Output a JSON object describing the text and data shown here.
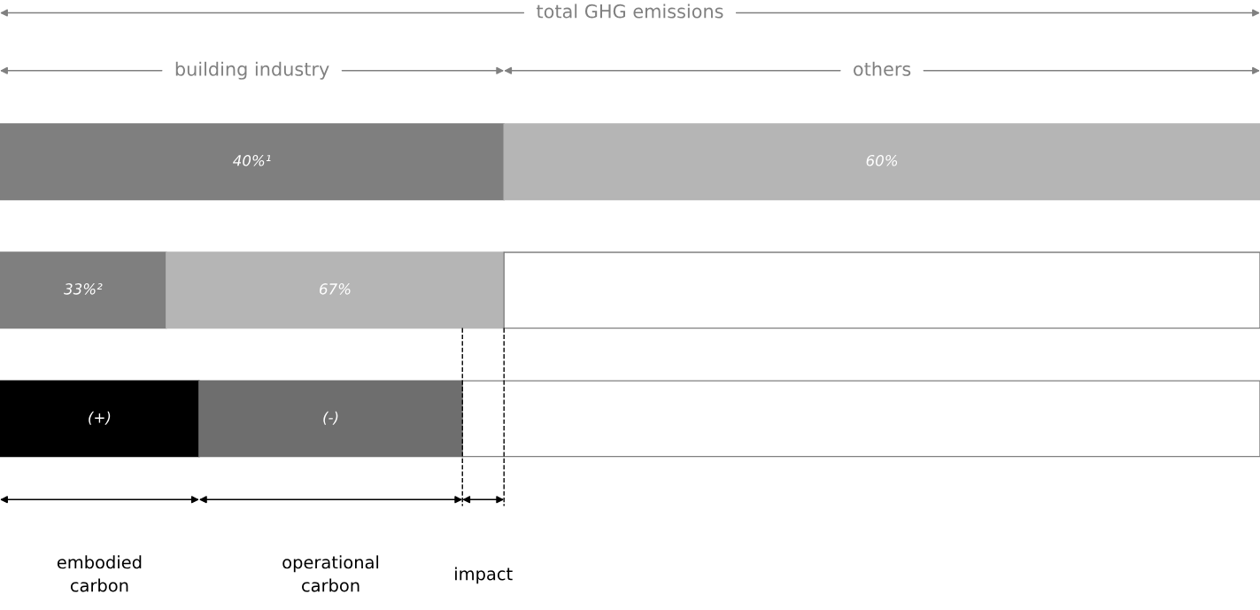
{
  "chart_data": {
    "type": "bar",
    "orientation": "horizontal",
    "stacked": true,
    "categories": [
      null,
      null,
      null
    ],
    "xlim": [
      0,
      100
    ],
    "series": [
      {
        "colors": [
          "#7f7f7f",
          "#7f7f7f",
          "#000000"
        ],
        "values": [
          40,
          13.2,
          15.8
        ],
        "value_labels": [
          "40%¹",
          null,
          "(+)"
        ]
      },
      {
        "colors": [
          "#b5b5b5",
          "#b5b5b5",
          "#6e6e6e"
        ],
        "values": [
          60,
          26.8,
          20.9
        ],
        "value_labels": [
          "60%",
          null,
          "(-)"
        ]
      },
      {
        "colors": [
          "#ffffff",
          "#ffffff",
          "#ffffff"
        ],
        "values": [
          null,
          60,
          63.3
        ]
      }
    ],
    "ref_lines": [
      {
        "axis": "x",
        "value": 36.7,
        "line_style": "dashed",
        "color": "#000000"
      },
      {
        "axis": "x",
        "value": 40,
        "line_style": "dashed",
        "color": "#000000"
      }
    ],
    "annotations": [
      "total GHG emissions",
      "building industry",
      "others",
      "embodied\ncarbon",
      "operational\ncarbon",
      "impact",
      "33%²",
      "67%"
    ]
  }
}
